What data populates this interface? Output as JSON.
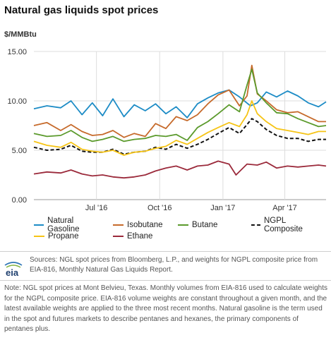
{
  "title": "Natural gas liquids spot prices",
  "unit_label": "$/MMBtu",
  "sources": "Sources: NGL spot prices from Bloomberg, L.P., and weights for NGPL composite price from EIA-816, Monthly Natural Gas Liquids Report.",
  "note": "Note: NGL spot prices at Mont Belvieu, Texas. Monthly volumes from EIA-816 used to calculate weights for the NGPL composite price. EIA-816 volume weights are constant throughout a given month, and the latest available weights are applied to the three most recent months. Natural gasoline is the term used in the spot and futures markets to describe pentanes and hexanes, the primary components of pentanes plus.",
  "logo_text": "eia",
  "colors": {
    "natural_gasoline": "#1d8cc6",
    "isobutane": "#c66a2b",
    "butane": "#5b9a2c",
    "ngpl_composite": "#111111",
    "propane": "#f6c416",
    "ethane": "#9b2a3b",
    "grid": "#dddddd"
  },
  "chart_data": {
    "type": "line",
    "y_ticks": [
      "0.00",
      "5.00",
      "10.00",
      "15.00"
    ],
    "ylim": [
      0,
      15
    ],
    "x_ticks": [
      {
        "date": "2016-07-01",
        "label": "Jul '16"
      },
      {
        "date": "2016-10-01",
        "label": "Oct '16"
      },
      {
        "date": "2017-01-01",
        "label": "Jan '17"
      },
      {
        "date": "2017-04-01",
        "label": "Apr '17"
      }
    ],
    "xlim": [
      "2016-04-01",
      "2017-05-31"
    ],
    "grid": true,
    "legend_position": "bottom",
    "series": [
      {
        "key": "natural_gasoline",
        "name": "Natural Gasoline",
        "dashed": false,
        "points": [
          [
            "2016-04-01",
            9.2
          ],
          [
            "2016-04-20",
            9.5
          ],
          [
            "2016-05-10",
            9.3
          ],
          [
            "2016-05-25",
            10.0
          ],
          [
            "2016-06-10",
            8.6
          ],
          [
            "2016-06-25",
            9.8
          ],
          [
            "2016-07-10",
            8.5
          ],
          [
            "2016-07-25",
            10.2
          ],
          [
            "2016-08-10",
            8.4
          ],
          [
            "2016-08-25",
            9.6
          ],
          [
            "2016-09-10",
            9.0
          ],
          [
            "2016-09-25",
            9.7
          ],
          [
            "2016-10-10",
            8.7
          ],
          [
            "2016-10-25",
            9.4
          ],
          [
            "2016-11-10",
            8.3
          ],
          [
            "2016-11-25",
            9.7
          ],
          [
            "2016-12-10",
            10.3
          ],
          [
            "2016-12-25",
            10.8
          ],
          [
            "2017-01-10",
            11.1
          ],
          [
            "2017-01-25",
            10.4
          ],
          [
            "2017-02-10",
            9.5
          ],
          [
            "2017-02-20",
            9.8
          ],
          [
            "2017-03-05",
            10.9
          ],
          [
            "2017-03-20",
            10.4
          ],
          [
            "2017-04-05",
            11.0
          ],
          [
            "2017-04-20",
            10.5
          ],
          [
            "2017-05-05",
            9.8
          ],
          [
            "2017-05-20",
            9.4
          ],
          [
            "2017-05-31",
            9.9
          ]
        ]
      },
      {
        "key": "isobutane",
        "name": "Isobutane",
        "dashed": false,
        "points": [
          [
            "2016-04-01",
            7.5
          ],
          [
            "2016-04-20",
            7.8
          ],
          [
            "2016-05-10",
            7.0
          ],
          [
            "2016-05-25",
            7.6
          ],
          [
            "2016-06-10",
            6.9
          ],
          [
            "2016-06-25",
            6.5
          ],
          [
            "2016-07-10",
            6.6
          ],
          [
            "2016-07-25",
            7.0
          ],
          [
            "2016-08-10",
            6.3
          ],
          [
            "2016-08-25",
            6.7
          ],
          [
            "2016-09-10",
            6.4
          ],
          [
            "2016-09-25",
            7.7
          ],
          [
            "2016-10-10",
            7.2
          ],
          [
            "2016-10-25",
            8.4
          ],
          [
            "2016-11-10",
            8.0
          ],
          [
            "2016-11-25",
            8.6
          ],
          [
            "2016-12-10",
            9.7
          ],
          [
            "2016-12-25",
            10.6
          ],
          [
            "2017-01-10",
            11.1
          ],
          [
            "2017-01-25",
            9.5
          ],
          [
            "2017-02-05",
            10.5
          ],
          [
            "2017-02-12",
            13.6
          ],
          [
            "2017-02-20",
            10.7
          ],
          [
            "2017-03-05",
            10.0
          ],
          [
            "2017-03-20",
            9.1
          ],
          [
            "2017-04-05",
            8.8
          ],
          [
            "2017-04-20",
            8.9
          ],
          [
            "2017-05-05",
            8.4
          ],
          [
            "2017-05-20",
            7.9
          ],
          [
            "2017-05-31",
            7.9
          ]
        ]
      },
      {
        "key": "butane",
        "name": "Butane",
        "dashed": false,
        "points": [
          [
            "2016-04-01",
            6.7
          ],
          [
            "2016-04-20",
            6.4
          ],
          [
            "2016-05-10",
            6.5
          ],
          [
            "2016-05-25",
            7.0
          ],
          [
            "2016-06-10",
            6.3
          ],
          [
            "2016-06-25",
            5.9
          ],
          [
            "2016-07-10",
            6.1
          ],
          [
            "2016-07-25",
            6.4
          ],
          [
            "2016-08-10",
            5.9
          ],
          [
            "2016-08-25",
            6.1
          ],
          [
            "2016-09-10",
            6.2
          ],
          [
            "2016-09-25",
            6.5
          ],
          [
            "2016-10-10",
            6.4
          ],
          [
            "2016-10-25",
            6.6
          ],
          [
            "2016-11-10",
            6.0
          ],
          [
            "2016-11-25",
            7.3
          ],
          [
            "2016-12-10",
            7.9
          ],
          [
            "2016-12-25",
            8.7
          ],
          [
            "2017-01-10",
            9.6
          ],
          [
            "2017-01-25",
            8.9
          ],
          [
            "2017-02-05",
            11.6
          ],
          [
            "2017-02-12",
            13.2
          ],
          [
            "2017-02-20",
            10.8
          ],
          [
            "2017-03-05",
            9.8
          ],
          [
            "2017-03-20",
            8.8
          ],
          [
            "2017-04-05",
            8.7
          ],
          [
            "2017-04-20",
            8.2
          ],
          [
            "2017-05-05",
            7.8
          ],
          [
            "2017-05-20",
            7.4
          ],
          [
            "2017-05-31",
            7.5
          ]
        ]
      },
      {
        "key": "ngpl_composite",
        "name": "NGPL Composite",
        "dashed": true,
        "points": [
          [
            "2016-04-01",
            5.3
          ],
          [
            "2016-04-20",
            5.0
          ],
          [
            "2016-05-10",
            5.1
          ],
          [
            "2016-05-25",
            5.5
          ],
          [
            "2016-06-10",
            4.9
          ],
          [
            "2016-06-25",
            4.8
          ],
          [
            "2016-07-10",
            4.8
          ],
          [
            "2016-07-25",
            5.1
          ],
          [
            "2016-08-10",
            4.6
          ],
          [
            "2016-08-25",
            4.8
          ],
          [
            "2016-09-10",
            4.9
          ],
          [
            "2016-09-25",
            5.3
          ],
          [
            "2016-10-10",
            5.1
          ],
          [
            "2016-10-25",
            5.6
          ],
          [
            "2016-11-10",
            5.2
          ],
          [
            "2016-11-25",
            5.6
          ],
          [
            "2016-12-10",
            6.1
          ],
          [
            "2016-12-25",
            6.7
          ],
          [
            "2017-01-10",
            7.3
          ],
          [
            "2017-01-25",
            6.7
          ],
          [
            "2017-02-05",
            7.6
          ],
          [
            "2017-02-12",
            8.2
          ],
          [
            "2017-02-20",
            7.9
          ],
          [
            "2017-03-05",
            7.1
          ],
          [
            "2017-03-20",
            6.5
          ],
          [
            "2017-04-05",
            6.2
          ],
          [
            "2017-04-20",
            6.2
          ],
          [
            "2017-05-05",
            5.9
          ],
          [
            "2017-05-20",
            6.1
          ],
          [
            "2017-05-31",
            6.1
          ]
        ]
      },
      {
        "key": "propane",
        "name": "Propane",
        "dashed": false,
        "points": [
          [
            "2016-04-01",
            5.9
          ],
          [
            "2016-04-20",
            5.5
          ],
          [
            "2016-05-10",
            5.3
          ],
          [
            "2016-05-25",
            5.8
          ],
          [
            "2016-06-10",
            5.1
          ],
          [
            "2016-06-25",
            4.9
          ],
          [
            "2016-07-10",
            4.8
          ],
          [
            "2016-07-25",
            5.0
          ],
          [
            "2016-08-10",
            4.5
          ],
          [
            "2016-08-25",
            4.8
          ],
          [
            "2016-09-10",
            4.9
          ],
          [
            "2016-09-25",
            5.2
          ],
          [
            "2016-10-10",
            5.4
          ],
          [
            "2016-10-25",
            6.0
          ],
          [
            "2016-11-10",
            5.6
          ],
          [
            "2016-11-25",
            6.2
          ],
          [
            "2016-12-10",
            6.8
          ],
          [
            "2016-12-25",
            7.3
          ],
          [
            "2017-01-10",
            7.8
          ],
          [
            "2017-01-25",
            7.4
          ],
          [
            "2017-02-05",
            8.6
          ],
          [
            "2017-02-12",
            10.0
          ],
          [
            "2017-02-20",
            8.7
          ],
          [
            "2017-03-05",
            7.9
          ],
          [
            "2017-03-20",
            7.2
          ],
          [
            "2017-04-05",
            7.0
          ],
          [
            "2017-04-20",
            6.8
          ],
          [
            "2017-05-05",
            6.6
          ],
          [
            "2017-05-20",
            6.9
          ],
          [
            "2017-05-31",
            6.9
          ]
        ]
      },
      {
        "key": "ethane",
        "name": "Ethane",
        "dashed": false,
        "points": [
          [
            "2016-04-01",
            2.6
          ],
          [
            "2016-04-20",
            2.8
          ],
          [
            "2016-05-10",
            2.7
          ],
          [
            "2016-05-25",
            3.0
          ],
          [
            "2016-06-10",
            2.6
          ],
          [
            "2016-06-25",
            2.4
          ],
          [
            "2016-07-10",
            2.5
          ],
          [
            "2016-07-25",
            2.3
          ],
          [
            "2016-08-10",
            2.2
          ],
          [
            "2016-08-25",
            2.3
          ],
          [
            "2016-09-10",
            2.5
          ],
          [
            "2016-09-25",
            2.9
          ],
          [
            "2016-10-10",
            3.2
          ],
          [
            "2016-10-25",
            3.4
          ],
          [
            "2016-11-10",
            3.0
          ],
          [
            "2016-11-25",
            3.4
          ],
          [
            "2016-12-10",
            3.5
          ],
          [
            "2016-12-25",
            3.9
          ],
          [
            "2017-01-10",
            3.6
          ],
          [
            "2017-01-20",
            2.5
          ],
          [
            "2017-02-05",
            3.6
          ],
          [
            "2017-02-20",
            3.5
          ],
          [
            "2017-03-05",
            3.8
          ],
          [
            "2017-03-20",
            3.2
          ],
          [
            "2017-04-05",
            3.4
          ],
          [
            "2017-04-20",
            3.3
          ],
          [
            "2017-05-05",
            3.4
          ],
          [
            "2017-05-20",
            3.5
          ],
          [
            "2017-05-31",
            3.4
          ]
        ]
      }
    ],
    "legend_rows": [
      [
        "natural_gasoline",
        "isobutane",
        "butane",
        "ngpl_composite"
      ],
      [
        "propane",
        "ethane"
      ]
    ]
  }
}
